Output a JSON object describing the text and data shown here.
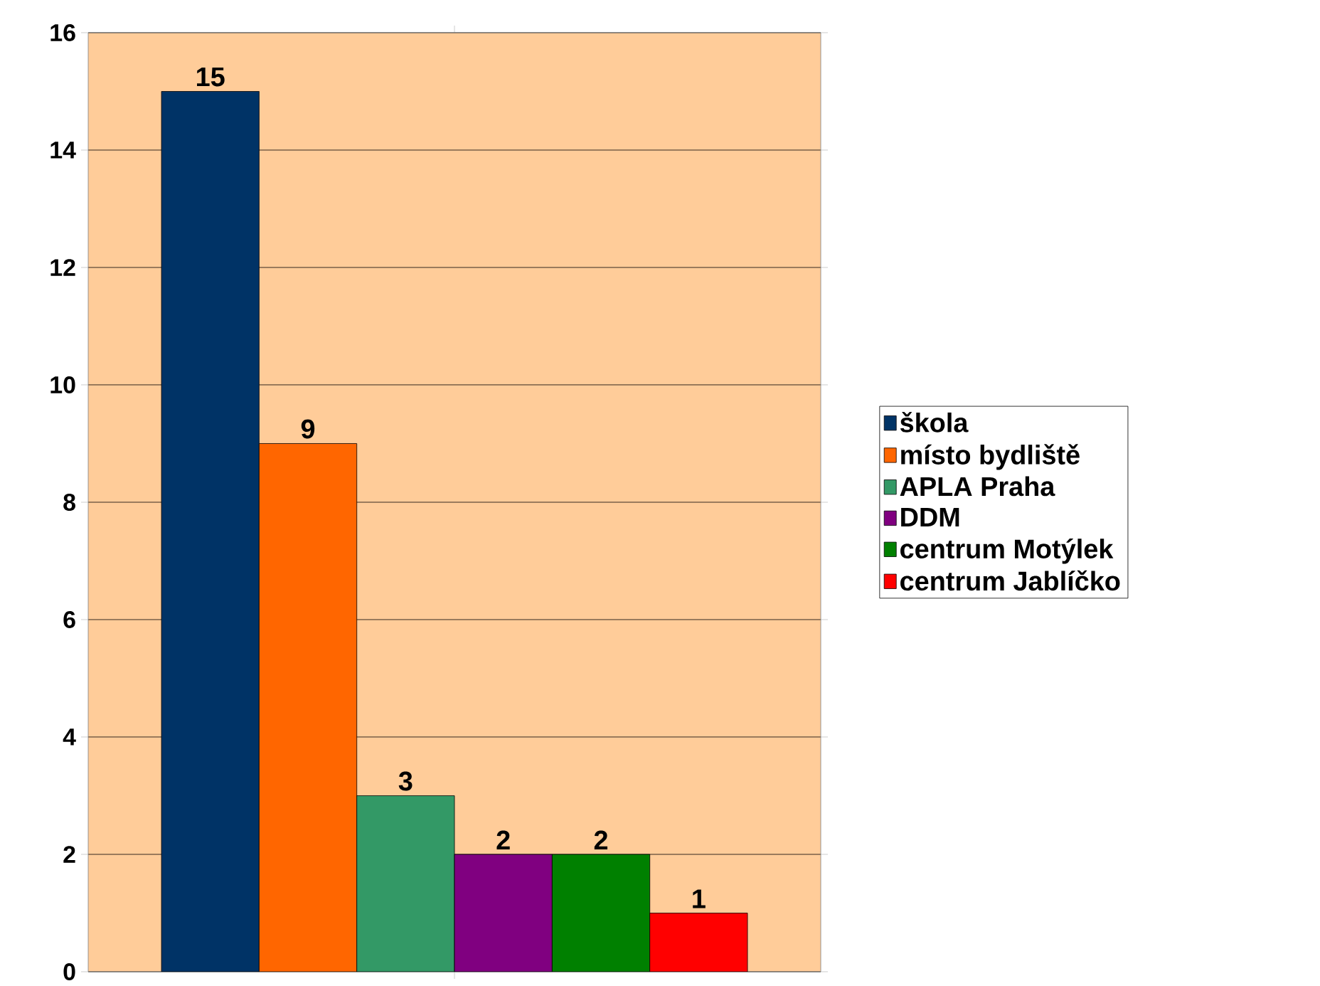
{
  "chart_data": {
    "type": "bar",
    "categories": [
      null
    ],
    "series": [
      {
        "name": "škola",
        "color": "#003366",
        "values": [
          15
        ]
      },
      {
        "name": "místo bydliště",
        "color": "#ff6600",
        "values": [
          9
        ]
      },
      {
        "name": "APLA Praha",
        "color": "#339966",
        "values": [
          3
        ]
      },
      {
        "name": "DDM",
        "color": "#800080",
        "values": [
          2
        ]
      },
      {
        "name": "centrum Motýlek",
        "color": "#008000",
        "values": [
          2
        ]
      },
      {
        "name": "centrum Jablíčko",
        "color": "#ff0000",
        "values": [
          1
        ]
      }
    ],
    "ylim": [
      0,
      16
    ],
    "yticks": [
      0,
      2,
      4,
      6,
      8,
      10,
      12,
      14,
      16
    ],
    "grid": "y",
    "legend": "right",
    "data_labels": true
  }
}
